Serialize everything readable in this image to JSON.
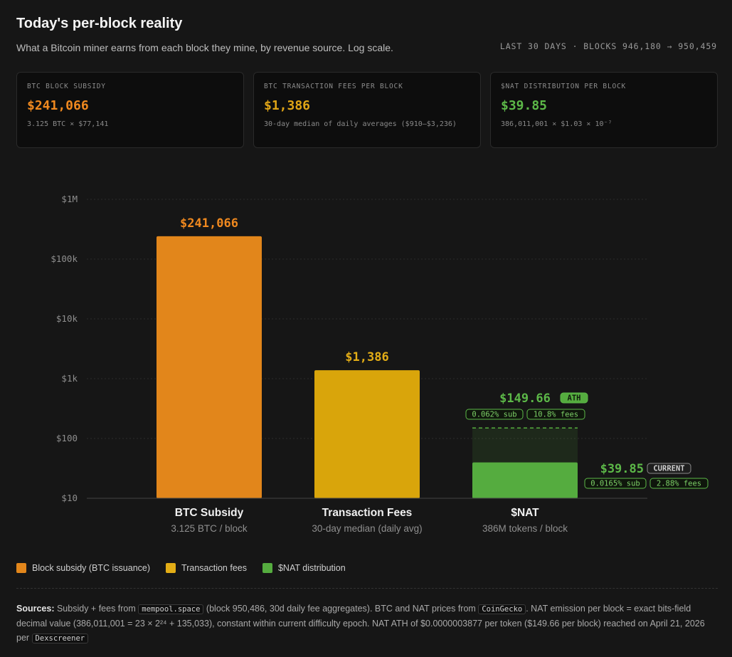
{
  "header": {
    "title": "Today's per-block reality",
    "subtitle": "What a Bitcoin miner earns from each block they mine, by revenue source. Log scale.",
    "range": "LAST 30 DAYS · BLOCKS 946,180 → 950,459"
  },
  "cards": [
    {
      "label": "BTC BLOCK SUBSIDY",
      "value": "$241,066",
      "sub": "3.125 BTC × $77,141",
      "color": "#f0891f"
    },
    {
      "label": "BTC TRANSACTION FEES PER BLOCK",
      "value": "$1,386",
      "sub": "30-day median of daily averages ($910–$3,236)",
      "color": "#e0a516"
    },
    {
      "label": "$NAT DISTRIBUTION PER BLOCK",
      "value": "$39.85",
      "sub": "386,011,001 × $1.03 × 10⁻⁷",
      "color": "#5cb848"
    }
  ],
  "chart_data": {
    "type": "bar",
    "yscale": "log",
    "ylim": [
      10,
      1000000
    ],
    "yticks": [
      10,
      100,
      1000,
      10000,
      100000,
      1000000
    ],
    "ytick_labels": [
      "$10",
      "$100",
      "$1k",
      "$10k",
      "$100k",
      "$1M"
    ],
    "grid": true,
    "categories": [
      "BTC Subsidy",
      "Transaction Fees",
      "$NAT"
    ],
    "category_sublabels": [
      "3.125 BTC / block",
      "30-day median (daily avg)",
      "386M tokens / block"
    ],
    "values": [
      241066,
      1386,
      39.85
    ],
    "value_labels": [
      "$241,066",
      "$1,386",
      "$39.85"
    ],
    "colors": [
      "#e2861b",
      "#d9a50b",
      "#55ac3f"
    ],
    "nat_ath": {
      "value": 149.66,
      "label": "$149.66",
      "badge": "ATH",
      "pills": [
        "0.062% sub",
        "10.8% fees"
      ]
    },
    "nat_current": {
      "badge": "CURRENT",
      "pills": [
        "0.0165% sub",
        "2.88% fees"
      ]
    }
  },
  "legend": [
    {
      "label": "Block subsidy (BTC issuance)",
      "color": "#e2861b"
    },
    {
      "label": "Transaction fees",
      "color": "#e3ad16"
    },
    {
      "label": "$NAT distribution",
      "color": "#55ac3f"
    }
  ],
  "sources": {
    "label": "Sources:",
    "t1": " Subsidy + fees from ",
    "c1": "mempool.space",
    "t2": " (block 950,486, 30d daily fee aggregates). BTC and NAT prices from ",
    "c2": "CoinGecko",
    "t3": ". NAT emission per block = exact bits-field decimal value (386,011,001 = 23 × 2²⁴ + 135,033), constant within current difficulty epoch. NAT ATH of $0.0000003877 per token ($149.66 per block) reached on April 21, 2026 per ",
    "c3": "Dexscreener"
  }
}
